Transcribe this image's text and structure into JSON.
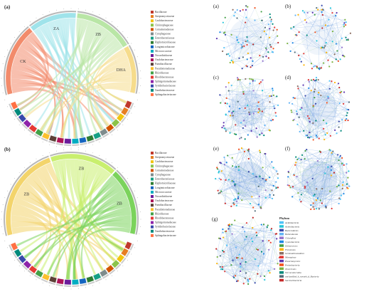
{
  "figure": {
    "panel_a_label": "(a)",
    "panel_b_label": "(b)",
    "chord_a": {
      "segment_labels": [
        {
          "text": "CK"
        },
        {
          "text": "ZA"
        },
        {
          "text": "ZB"
        },
        {
          "text": "DHA"
        }
      ]
    },
    "chord_b": {
      "segment_labels": [
        {
          "text": "ZB"
        },
        {
          "text": "ZB"
        },
        {
          "text": "ZB"
        }
      ]
    },
    "families": [
      {
        "name": "Bacillaceae",
        "color": "#c0392b"
      },
      {
        "name": "Streptomycetaceae",
        "color": "#e67e22"
      },
      {
        "name": "Caulobacteraceae",
        "color": "#f1c40f"
      },
      {
        "name": "Chitinophagaceae",
        "color": "#8bc34a"
      },
      {
        "name": "Comamonadaceae",
        "color": "#d35400"
      },
      {
        "name": "Cytophagaceae",
        "color": "#7f8c8d"
      },
      {
        "name": "Enterobacteriaceae",
        "color": "#16a085"
      },
      {
        "name": "Hyphomicrobiaceae",
        "color": "#2e7d32"
      },
      {
        "name": "Longimicrobiaceae",
        "color": "#1565c0"
      },
      {
        "name": "Micrococcaceae",
        "color": "#00acc1"
      },
      {
        "name": "Nocardioidaceae",
        "color": "#6a1b9a"
      },
      {
        "name": "Oxalobacteraceae",
        "color": "#ad1457"
      },
      {
        "name": "Paenibacillaceae",
        "color": "#5d4037"
      },
      {
        "name": "Pseudomonadaceae",
        "color": "#fbc02d"
      },
      {
        "name": "Rhizobiaceae",
        "color": "#43a047"
      },
      {
        "name": "Rhodobacteraceae",
        "color": "#e53935"
      },
      {
        "name": "Sphingomonadaceae",
        "color": "#8e24aa"
      },
      {
        "name": "Symbiobacteriaceae",
        "color": "#3949ab"
      },
      {
        "name": "Xanthobacteraceae",
        "color": "#00897b"
      },
      {
        "name": "Sphingobacteriaceae",
        "color": "#ff7043"
      }
    ],
    "networks": [
      {
        "label": "(a)"
      },
      {
        "label": "(b)"
      },
      {
        "label": "(c)"
      },
      {
        "label": "(d)"
      },
      {
        "label": "(e)"
      },
      {
        "label": "(f)"
      },
      {
        "label": "(g)"
      }
    ],
    "phylum_legend": {
      "title": "Phylum",
      "items": [
        {
          "name": "Acidobacteria",
          "color": "#4fc3f7"
        },
        {
          "name": "Actinobacteria",
          "color": "#26c6da"
        },
        {
          "name": "Bacteroidetes",
          "color": "#3949ab"
        },
        {
          "name": "Balneolaeota",
          "color": "#64b5f6"
        },
        {
          "name": "Chloroflexi",
          "color": "#9575cd"
        },
        {
          "name": "Cyanobacteria",
          "color": "#1e88e5"
        },
        {
          "name": "Deinococcus",
          "color": "#43a047"
        },
        {
          "name": "Firmicutes",
          "color": "#ffb300"
        },
        {
          "name": "Gemmatimonadetes",
          "color": "#8d6e63"
        },
        {
          "name": "Nitrospirae",
          "color": "#e53935"
        },
        {
          "name": "Planctomycetes",
          "color": "#5e35b1"
        },
        {
          "name": "Proteobacteria",
          "color": "#f4511e"
        },
        {
          "name": "Tenericutes",
          "color": "#7cb342"
        },
        {
          "name": "Verrucomicrobia",
          "color": "#00897b"
        },
        {
          "name": "unclassified_k_norank_d_Bacteria",
          "color": "#546e7a"
        },
        {
          "name": "Saccharibacteria",
          "color": "#c62828"
        }
      ]
    }
  }
}
